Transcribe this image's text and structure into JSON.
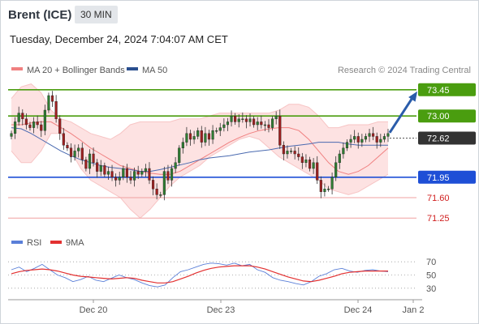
{
  "header": {
    "instrument": "Brent (ICE)",
    "timeframe": "30 MIN",
    "datetime": "Tuesday, December 24, 2024 7:04:07 AM CET"
  },
  "legend": {
    "ma20": "MA 20 + Bollinger Bands",
    "ma50": "MA 50",
    "credit": "Research © 2024 Trading Central",
    "rsi": "RSI",
    "rsi_ma": "9MA"
  },
  "colors": {
    "resistance": "#4a9d0f",
    "support": "#1e4fd6",
    "support_light": "#f0a0a0",
    "current": "#333333",
    "bollinger_fill": "#fde2e2",
    "ma20": "#f08080",
    "ma50": "#4a6ab0",
    "bull": "#2e7d32",
    "bear": "#a02020",
    "arrow": "#2a5caa",
    "rsi": "#5a7fd8",
    "rsi_ma": "#e33030"
  },
  "chart_data": [
    {
      "type": "candlestick",
      "title": "Brent (ICE)",
      "ylim": [
        71.1,
        73.6
      ],
      "x_ticks": [
        "Dec 20",
        "Dec 23",
        "Dec 24",
        "Jan 2"
      ],
      "levels": [
        {
          "value": 73.45,
          "label": "73.45",
          "kind": "resistance"
        },
        {
          "value": 73.0,
          "label": "73.00",
          "kind": "resistance"
        },
        {
          "value": 72.62,
          "label": "72.62",
          "kind": "current"
        },
        {
          "value": 71.95,
          "label": "71.95",
          "kind": "support"
        },
        {
          "value": 71.6,
          "label": "71.60",
          "kind": "support-light"
        },
        {
          "value": 71.25,
          "label": "71.25",
          "kind": "support-light"
        }
      ],
      "closes": [
        72.7,
        72.9,
        73.05,
        72.95,
        72.85,
        72.8,
        72.9,
        72.85,
        72.75,
        73.1,
        73.35,
        73.25,
        72.95,
        72.7,
        72.5,
        72.45,
        72.3,
        72.4,
        72.45,
        72.25,
        72.1,
        72.35,
        72.2,
        72.05,
        72.15,
        72.0,
        72.05,
        71.95,
        71.9,
        71.95,
        72.1,
        71.95,
        71.9,
        72.05,
        72.0,
        72.05,
        72.1,
        71.9,
        71.75,
        71.65,
        71.65,
        72.05,
        71.9,
        72.1,
        72.2,
        72.45,
        72.55,
        72.7,
        72.6,
        72.65,
        72.75,
        72.55,
        72.7,
        72.6,
        72.75,
        72.75,
        72.8,
        72.85,
        72.9,
        73.0,
        72.9,
        72.95,
        72.95,
        72.9,
        72.95,
        72.85,
        72.9,
        72.85,
        72.85,
        72.8,
        72.95,
        73.0,
        72.5,
        72.35,
        72.4,
        72.4,
        72.35,
        72.3,
        72.2,
        72.25,
        72.1,
        72.2,
        71.9,
        71.7,
        71.75,
        71.75,
        71.95,
        72.2,
        72.35,
        72.45,
        72.55,
        72.6,
        72.65,
        72.55,
        72.6,
        72.65,
        72.7,
        72.65,
        72.55,
        72.6,
        72.65,
        72.7
      ],
      "bollinger": {
        "mid": [
          72.85,
          72.85,
          72.88,
          72.9,
          72.9,
          72.8,
          72.7,
          72.58,
          72.45,
          72.35,
          72.25,
          72.15,
          72.1,
          72.05,
          72.02,
          72.0,
          72.0,
          72.05,
          72.15,
          72.25,
          72.35,
          72.45,
          72.55,
          72.63,
          72.7,
          72.75,
          72.78,
          72.8,
          72.8,
          72.75,
          72.6,
          72.4,
          72.2,
          72.05,
          72.0,
          72.05,
          72.15,
          72.3,
          72.45
        ],
        "upper": [
          73.3,
          73.5,
          73.55,
          73.4,
          73.1,
          72.95,
          72.9,
          72.8,
          72.7,
          72.65,
          72.6,
          72.7,
          72.85,
          72.9,
          72.9,
          72.9,
          72.9,
          72.95,
          72.95,
          72.95,
          73.0,
          73.05,
          73.05,
          73.05,
          73.05,
          73.05,
          73.05,
          73.1,
          73.2,
          73.2,
          73.15,
          73.0,
          72.8,
          72.8,
          72.85,
          72.85,
          72.85,
          72.9,
          72.9
        ],
        "lower": [
          72.4,
          72.2,
          72.2,
          72.4,
          72.7,
          72.7,
          72.4,
          72.1,
          71.9,
          71.8,
          71.7,
          71.6,
          71.4,
          71.25,
          71.4,
          71.6,
          71.8,
          71.95,
          72.05,
          72.15,
          72.3,
          72.4,
          72.5,
          72.6,
          72.65,
          72.6,
          72.45,
          72.3,
          72.2,
          72.1,
          72.0,
          71.9,
          71.75,
          71.7,
          71.65,
          71.7,
          71.8,
          71.9,
          72.0
        ]
      },
      "ma50": [
        72.8,
        72.78,
        72.7,
        72.6,
        72.5,
        72.4,
        72.32,
        72.25,
        72.2,
        72.15,
        72.12,
        72.1,
        72.08,
        72.05,
        72.05,
        72.08,
        72.12,
        72.16,
        72.2,
        72.25,
        72.28,
        72.3,
        72.32,
        72.35,
        72.38,
        72.4,
        72.42,
        72.45,
        72.48,
        72.5,
        72.52,
        72.55,
        72.55,
        72.55,
        72.52,
        72.5,
        72.5,
        72.5,
        72.5
      ]
    },
    {
      "type": "line",
      "title": "RSI",
      "ylim": [
        20,
        80
      ],
      "y_ticks": [
        70,
        50,
        30
      ],
      "series": [
        {
          "name": "RSI",
          "values": [
            58,
            62,
            55,
            60,
            66,
            58,
            50,
            46,
            40,
            43,
            48,
            42,
            40,
            45,
            50,
            46,
            43,
            38,
            34,
            32,
            35,
            46,
            55,
            58,
            62,
            66,
            68,
            67,
            65,
            68,
            64,
            66,
            58,
            54,
            46,
            42,
            40,
            37,
            35,
            40,
            48,
            52,
            58,
            60,
            56,
            54,
            57,
            58,
            56,
            55
          ]
        },
        {
          "name": "9MA",
          "values": [
            52,
            55,
            57,
            58,
            59,
            58,
            56,
            53,
            50,
            48,
            47,
            46,
            45,
            44,
            45,
            46,
            45,
            42,
            40,
            38,
            38,
            40,
            44,
            48,
            53,
            57,
            60,
            62,
            63,
            64,
            64,
            64,
            62,
            59,
            55,
            51,
            47,
            44,
            41,
            40,
            42,
            45,
            48,
            52,
            54,
            55,
            56,
            56,
            56,
            56
          ]
        }
      ]
    }
  ]
}
